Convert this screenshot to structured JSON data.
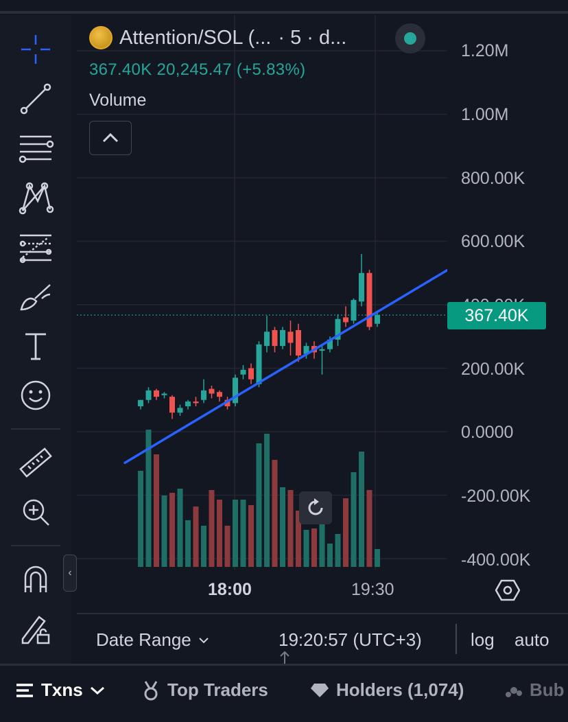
{
  "header": {
    "symbol": "Attention/SOL (...",
    "interval": "· 5 · d...",
    "quote_price": "367.40K",
    "quote_change": "20,245.47 (+5.83%)",
    "volume_label": "Volume",
    "last_price": "367.40K",
    "status_color": "#26a69a"
  },
  "price_axis": {
    "labels": [
      "1.20M",
      "1.00M",
      "800.00K",
      "600.00K",
      "400.00K",
      "200.00K",
      "0.0000",
      "-200.00K",
      "-400.00K"
    ]
  },
  "time_axis": {
    "labels": [
      "18:00",
      "19:30"
    ]
  },
  "bottom_bar": {
    "date_range": "Date Range",
    "clock": "19:20:57 (UTC+3)",
    "log": "log",
    "auto": "auto"
  },
  "tabs": {
    "txns": "Txns",
    "top_traders": "Top Traders",
    "holders": "Holders (1,074)",
    "bubble": "Bub"
  },
  "toolbar": {
    "icons": [
      "crosshair-icon",
      "trend-line-icon",
      "horizontal-lines-icon",
      "pattern-icon",
      "fib-icon",
      "brush-icon",
      "text-icon",
      "emoji-icon",
      "ruler-icon",
      "zoom-icon",
      "magnet-icon",
      "lock-drawing-icon"
    ]
  },
  "colors": {
    "up": "#26a69a",
    "down": "#ef5350",
    "trendline": "#2962ff",
    "accent": "#089981"
  },
  "chart_data": {
    "type": "candlestick",
    "y_range": [
      -400000,
      1200000
    ],
    "last_price": 367400,
    "candles": [
      {
        "o": 80000,
        "h": 100000,
        "l": 70000,
        "c": 100000
      },
      {
        "o": 100000,
        "h": 140000,
        "l": 90000,
        "c": 130000
      },
      {
        "o": 130000,
        "h": 135000,
        "l": 100000,
        "c": 110000
      },
      {
        "o": 115000,
        "h": 125000,
        "l": 105000,
        "c": 120000
      },
      {
        "o": 110000,
        "h": 115000,
        "l": 40000,
        "c": 60000
      },
      {
        "o": 60000,
        "h": 85000,
        "l": 50000,
        "c": 75000
      },
      {
        "o": 80000,
        "h": 100000,
        "l": 70000,
        "c": 95000
      },
      {
        "o": 95000,
        "h": 110000,
        "l": 80000,
        "c": 90000
      },
      {
        "o": 100000,
        "h": 165000,
        "l": 90000,
        "c": 130000
      },
      {
        "o": 135000,
        "h": 145000,
        "l": 105000,
        "c": 120000
      },
      {
        "o": 125000,
        "h": 130000,
        "l": 95000,
        "c": 110000
      },
      {
        "o": 100000,
        "h": 110000,
        "l": 70000,
        "c": 80000
      },
      {
        "o": 90000,
        "h": 180000,
        "l": 80000,
        "c": 170000
      },
      {
        "o": 180000,
        "h": 210000,
        "l": 165000,
        "c": 195000
      },
      {
        "o": 200000,
        "h": 215000,
        "l": 150000,
        "c": 165000
      },
      {
        "o": 150000,
        "h": 285000,
        "l": 140000,
        "c": 275000
      },
      {
        "o": 270000,
        "h": 365000,
        "l": 250000,
        "c": 315000
      },
      {
        "o": 320000,
        "h": 330000,
        "l": 250000,
        "c": 270000
      },
      {
        "o": 270000,
        "h": 330000,
        "l": 260000,
        "c": 320000
      },
      {
        "o": 315000,
        "h": 350000,
        "l": 240000,
        "c": 280000
      },
      {
        "o": 320000,
        "h": 340000,
        "l": 220000,
        "c": 240000
      },
      {
        "o": 245000,
        "h": 280000,
        "l": 230000,
        "c": 270000
      },
      {
        "o": 270000,
        "h": 285000,
        "l": 230000,
        "c": 250000
      },
      {
        "o": 255000,
        "h": 275000,
        "l": 180000,
        "c": 260000
      },
      {
        "o": 260000,
        "h": 300000,
        "l": 250000,
        "c": 290000
      },
      {
        "o": 290000,
        "h": 370000,
        "l": 270000,
        "c": 355000
      },
      {
        "o": 360000,
        "h": 395000,
        "l": 330000,
        "c": 345000
      },
      {
        "o": 350000,
        "h": 420000,
        "l": 340000,
        "c": 415000
      },
      {
        "o": 410000,
        "h": 560000,
        "l": 395000,
        "c": 500000
      },
      {
        "o": 500000,
        "h": 510000,
        "l": 320000,
        "c": 330000
      },
      {
        "o": 340000,
        "h": 380000,
        "l": 330000,
        "c": 367400
      }
    ],
    "volume_pct": [
      0.7,
      1.0,
      0.82,
      0.52,
      0.54,
      0.57,
      0.34,
      0.44,
      0.3,
      0.56,
      0.49,
      0.3,
      0.49,
      0.49,
      0.45,
      0.9,
      0.97,
      0.78,
      0.58,
      0.56,
      0.41,
      0.27,
      0.28,
      0.33,
      0.17,
      0.24,
      0.5,
      0.69,
      0.84,
      0.56,
      0.13
    ],
    "trendline": {
      "start_price": -98000,
      "end_price": 509000
    }
  }
}
